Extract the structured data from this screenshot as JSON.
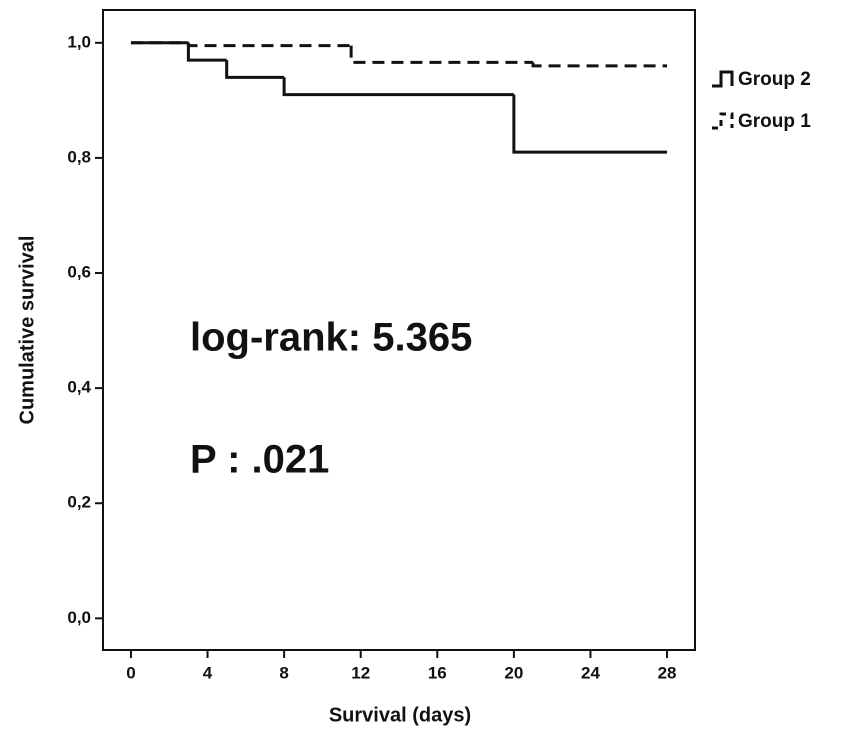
{
  "chart_data": {
    "type": "step",
    "x_label": "Survival (days)",
    "y_label": "Cumulative survival",
    "annotations": [
      "log-rank: 5.365",
      "P : .021"
    ],
    "xlim": [
      -1.46,
      29.46
    ],
    "xticks": [
      0,
      4,
      8,
      12,
      16,
      20,
      24,
      28
    ],
    "ylim": [
      -0.055,
      1.057
    ],
    "yticks": [
      {
        "value": 0,
        "label": "0,0"
      },
      {
        "value": 0.2,
        "label": "0,2"
      },
      {
        "value": 0.4,
        "label": "0,4"
      },
      {
        "value": 0.6,
        "label": "0,6"
      },
      {
        "value": 0.8,
        "label": "0,8"
      },
      {
        "value": 1,
        "label": "1,0"
      }
    ],
    "series": [
      {
        "name": "Group 2",
        "color": "#111111",
        "dash": false,
        "x": [
          0,
          3,
          5,
          8,
          20,
          28
        ],
        "values": [
          1,
          0.97,
          0.94,
          0.91,
          0.81,
          0.81
        ]
      },
      {
        "name": "Group 1",
        "color": "#111111",
        "dash": true,
        "x": [
          0,
          3,
          11.5,
          21,
          28
        ],
        "values": [
          1,
          0.995,
          0.966,
          0.96,
          0.96
        ]
      }
    ]
  }
}
